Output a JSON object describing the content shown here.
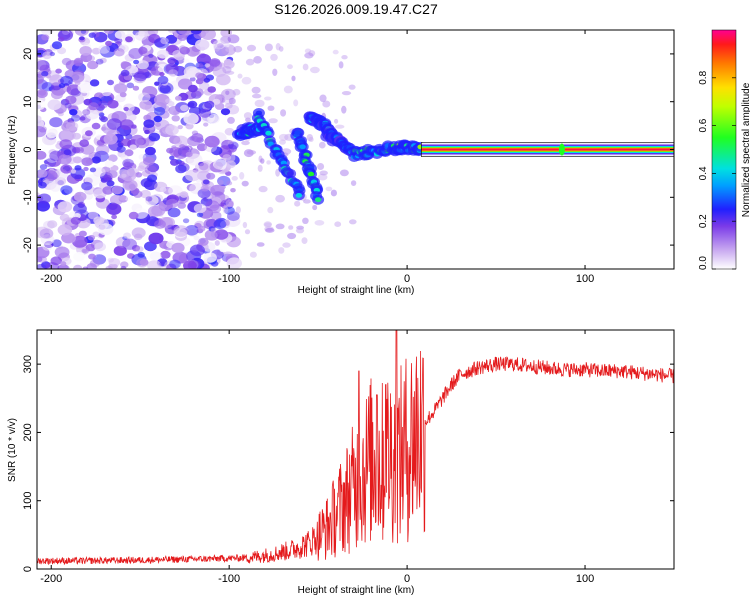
{
  "title": "S126.2026.009.19.47.C27",
  "chart_data": [
    {
      "type": "heatmap",
      "xlabel": "Height of straight line (km)",
      "ylabel": "Frequency (Hz)",
      "xlim": [
        -208,
        150
      ],
      "ylim": [
        -25,
        25
      ],
      "xticks": [
        -200,
        -100,
        0,
        100
      ],
      "yticks": [
        -20,
        -10,
        0,
        10,
        20
      ],
      "colorbar": {
        "label": "Normalized spectral amplitude",
        "ticks": [
          "0.0",
          "0.2",
          "0.4",
          "0.6",
          "0.8"
        ],
        "tick_values": [
          0.0,
          0.2,
          0.4,
          0.6,
          0.8
        ],
        "range": [
          0,
          1
        ]
      },
      "features": {
        "scatter_region_x": [
          -208,
          -97
        ],
        "scatter_amplitude": 0.15,
        "streaks": [
          {
            "x0": -95,
            "y0": 3.5,
            "x1": -82,
            "y1": 4.5,
            "amplitude": 0.45
          },
          {
            "x0": -84,
            "y0": 7,
            "x1": -60,
            "y1": -9,
            "amplitude": 0.45
          },
          {
            "x0": -62,
            "y0": 4,
            "x1": -50,
            "y1": -10,
            "amplitude": 0.5
          },
          {
            "x0": -55,
            "y0": 7,
            "x1": -43,
            "y1": 4,
            "amplitude": 0.4
          },
          {
            "x0": -45,
            "y0": 3.5,
            "x1": -32,
            "y1": 0,
            "amplitude": 0.35
          },
          {
            "x0": -30,
            "y0": -1,
            "x1": -5,
            "y1": 0.5,
            "amplitude": 0.5
          },
          {
            "x0": -5,
            "y0": 0.5,
            "x1": 8,
            "y1": 0,
            "amplitude": 0.6
          }
        ],
        "carrier": {
          "x_start": 8,
          "x_end": 150,
          "frequency": 0,
          "amplitude": 1.0,
          "blip_x": 87
        }
      }
    },
    {
      "type": "line",
      "xlabel": "Height of straight line (km)",
      "ylabel": "SNR (10 * v/v)",
      "xlim": [
        -208,
        150
      ],
      "ylim": [
        0,
        350
      ],
      "xticks": [
        -200,
        -100,
        0,
        100
      ],
      "yticks": [
        0,
        100,
        200,
        300
      ],
      "color": "#e41a1c",
      "series": [
        {
          "name": "SNR",
          "x": [
            -208,
            -180,
            -150,
            -130,
            -110,
            -95,
            -85,
            -75,
            -65,
            -55,
            -45,
            -40,
            -35,
            -30,
            -25,
            -20,
            -15,
            -10,
            -5,
            0,
            5,
            10,
            15,
            20,
            25,
            30,
            40,
            50,
            60,
            70,
            80,
            90,
            100,
            110,
            120,
            130,
            140,
            150
          ],
          "values": [
            12,
            12,
            13,
            14,
            15,
            16,
            18,
            22,
            28,
            38,
            60,
            80,
            100,
            120,
            140,
            160,
            150,
            170,
            160,
            180,
            200,
            215,
            230,
            250,
            270,
            285,
            295,
            300,
            300,
            297,
            294,
            292,
            292,
            290,
            290,
            287,
            285,
            282
          ]
        }
      ],
      "peaks": [
        {
          "x": -27,
          "value": 290
        },
        {
          "x": -6,
          "value": 350
        },
        {
          "x": -12,
          "value": 270
        },
        {
          "x": -17,
          "value": 255
        }
      ]
    }
  ]
}
